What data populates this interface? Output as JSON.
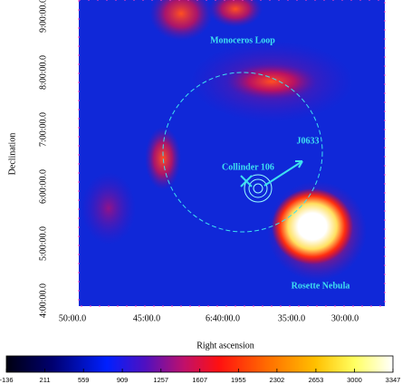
{
  "chart_data": {
    "type": "skymap",
    "xlabel": "Right ascension",
    "ylabel": "Declination",
    "xticks": [
      "50:00.0",
      "45:00.0",
      "6:40:00.0",
      "35:00.0",
      "30:00.0"
    ],
    "yticks": [
      "9:00:00.0",
      "8:00:00.0",
      "7:00:00.0",
      "6:00:00.0",
      "5:00:00.0",
      "4:00:00.0"
    ],
    "annotations": [
      "Monoceros Loop",
      "J0633",
      "Collinder 106",
      "Rosette Nebula"
    ],
    "colorbar": {
      "lim": [
        -136,
        3347
      ],
      "ticks": [
        -136,
        211,
        559,
        909,
        1257,
        1607,
        1955,
        2302,
        2653,
        3000,
        3347
      ]
    }
  }
}
